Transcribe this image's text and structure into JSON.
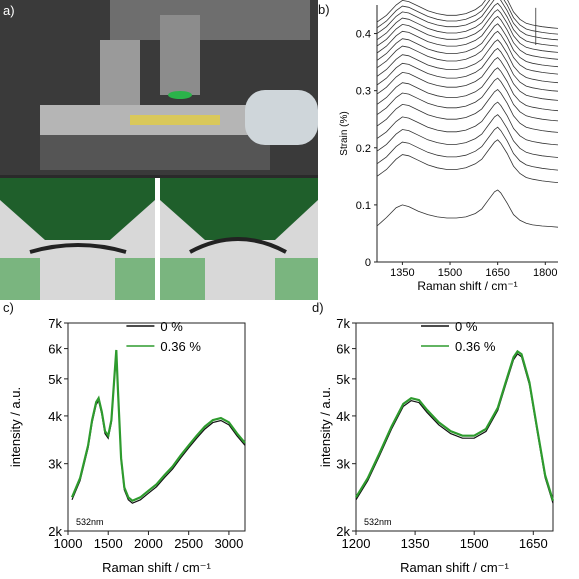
{
  "panels": {
    "a": {
      "letter": "a)"
    },
    "b": {
      "letter": "b)"
    },
    "c": {
      "letter": "c)"
    },
    "d": {
      "letter": "d)"
    }
  },
  "colors": {
    "series_0": "#111111",
    "series_036": "#2e9b2e",
    "photo_green": "#2bb34a",
    "photo_dark": "#1a1a1a"
  },
  "chart_data": [
    {
      "id": "b",
      "type": "line",
      "title": "",
      "xlabel": "Raman shift / cm⁻¹",
      "ylabel": "Strain (%)",
      "xlim": [
        1270,
        1840
      ],
      "ylim": [
        0,
        0.45
      ],
      "x_ticks": [
        "1350",
        "1500",
        "1650",
        "1800"
      ],
      "y_ticks": [
        "0",
        "0.1",
        "0.2",
        "0.3",
        "0.4"
      ],
      "grid": false,
      "x": [
        1270,
        1300,
        1330,
        1350,
        1370,
        1400,
        1430,
        1460,
        1490,
        1520,
        1550,
        1580,
        1600,
        1620,
        1640,
        1650,
        1660,
        1680,
        1700,
        1720,
        1740,
        1760,
        1790,
        1820,
        1840
      ],
      "series": [
        {
          "offset": 0.083,
          "values": [
            -0.02,
            -0.005,
            0.012,
            0.017,
            0.014,
            0.006,
            0.0,
            -0.004,
            -0.006,
            -0.006,
            -0.004,
            0.002,
            0.01,
            0.025,
            0.04,
            0.043,
            0.038,
            0.02,
            0.0,
            -0.01,
            -0.015,
            -0.018,
            -0.02,
            -0.021,
            -0.022
          ]
        },
        {
          "offset": 0.15,
          "values": [
            0.0,
            0.012,
            0.03,
            0.038,
            0.036,
            0.028,
            0.02,
            0.015,
            0.012,
            0.012,
            0.015,
            0.022,
            0.03,
            0.045,
            0.06,
            0.064,
            0.058,
            0.04,
            0.018,
            0.005,
            -0.002,
            -0.005,
            -0.008,
            -0.01,
            -0.011
          ]
        },
        {
          "offset": 0.172,
          "values": [
            0.0,
            0.012,
            0.03,
            0.038,
            0.036,
            0.028,
            0.02,
            0.015,
            0.012,
            0.012,
            0.015,
            0.022,
            0.03,
            0.045,
            0.06,
            0.064,
            0.058,
            0.04,
            0.018,
            0.005,
            -0.002,
            -0.005,
            -0.008,
            -0.01,
            -0.011
          ]
        },
        {
          "offset": 0.194,
          "values": [
            0.0,
            0.012,
            0.03,
            0.038,
            0.036,
            0.028,
            0.02,
            0.015,
            0.012,
            0.012,
            0.015,
            0.022,
            0.03,
            0.045,
            0.06,
            0.064,
            0.058,
            0.04,
            0.018,
            0.005,
            -0.002,
            -0.005,
            -0.008,
            -0.01,
            -0.011
          ]
        },
        {
          "offset": 0.216,
          "values": [
            0.0,
            0.012,
            0.03,
            0.038,
            0.036,
            0.028,
            0.02,
            0.015,
            0.012,
            0.012,
            0.015,
            0.022,
            0.03,
            0.045,
            0.06,
            0.064,
            0.058,
            0.04,
            0.018,
            0.005,
            -0.002,
            -0.005,
            -0.008,
            -0.01,
            -0.011
          ]
        },
        {
          "offset": 0.238,
          "values": [
            0.0,
            0.012,
            0.03,
            0.038,
            0.036,
            0.028,
            0.02,
            0.015,
            0.012,
            0.012,
            0.015,
            0.022,
            0.03,
            0.045,
            0.06,
            0.064,
            0.058,
            0.04,
            0.018,
            0.005,
            -0.002,
            -0.005,
            -0.008,
            -0.01,
            -0.011
          ]
        },
        {
          "offset": 0.258,
          "values": [
            0.0,
            0.012,
            0.03,
            0.038,
            0.036,
            0.028,
            0.02,
            0.015,
            0.012,
            0.012,
            0.015,
            0.022,
            0.03,
            0.045,
            0.06,
            0.064,
            0.058,
            0.04,
            0.018,
            0.005,
            -0.002,
            -0.005,
            -0.008,
            -0.01,
            -0.011
          ]
        },
        {
          "offset": 0.276,
          "values": [
            0.0,
            0.012,
            0.03,
            0.038,
            0.036,
            0.028,
            0.02,
            0.015,
            0.012,
            0.012,
            0.015,
            0.022,
            0.03,
            0.045,
            0.06,
            0.064,
            0.058,
            0.04,
            0.018,
            0.005,
            -0.002,
            -0.005,
            -0.008,
            -0.01,
            -0.011
          ]
        },
        {
          "offset": 0.294,
          "values": [
            0.0,
            0.012,
            0.03,
            0.038,
            0.036,
            0.028,
            0.02,
            0.015,
            0.012,
            0.012,
            0.015,
            0.022,
            0.03,
            0.045,
            0.06,
            0.064,
            0.058,
            0.04,
            0.018,
            0.005,
            -0.002,
            -0.005,
            -0.008,
            -0.01,
            -0.011
          ]
        },
        {
          "offset": 0.31,
          "values": [
            0.0,
            0.012,
            0.03,
            0.038,
            0.036,
            0.028,
            0.02,
            0.015,
            0.012,
            0.012,
            0.015,
            0.022,
            0.03,
            0.045,
            0.06,
            0.064,
            0.058,
            0.04,
            0.018,
            0.005,
            -0.002,
            -0.005,
            -0.008,
            -0.01,
            -0.011
          ]
        },
        {
          "offset": 0.325,
          "values": [
            0.0,
            0.012,
            0.03,
            0.038,
            0.036,
            0.028,
            0.02,
            0.015,
            0.012,
            0.012,
            0.015,
            0.022,
            0.03,
            0.045,
            0.06,
            0.064,
            0.058,
            0.04,
            0.018,
            0.005,
            -0.002,
            -0.005,
            -0.008,
            -0.01,
            -0.011
          ]
        },
        {
          "offset": 0.34,
          "values": [
            0.0,
            0.012,
            0.03,
            0.038,
            0.036,
            0.028,
            0.02,
            0.015,
            0.012,
            0.012,
            0.015,
            0.022,
            0.03,
            0.045,
            0.06,
            0.064,
            0.058,
            0.04,
            0.018,
            0.005,
            -0.002,
            -0.005,
            -0.008,
            -0.01,
            -0.011
          ]
        },
        {
          "offset": 0.353,
          "values": [
            0.0,
            0.012,
            0.03,
            0.038,
            0.036,
            0.028,
            0.02,
            0.015,
            0.012,
            0.012,
            0.015,
            0.022,
            0.03,
            0.045,
            0.06,
            0.064,
            0.058,
            0.04,
            0.018,
            0.005,
            -0.002,
            -0.005,
            -0.008,
            -0.01,
            -0.011
          ]
        },
        {
          "offset": 0.366,
          "values": [
            0.0,
            0.012,
            0.03,
            0.038,
            0.036,
            0.028,
            0.02,
            0.015,
            0.012,
            0.012,
            0.015,
            0.022,
            0.03,
            0.045,
            0.06,
            0.064,
            0.058,
            0.04,
            0.018,
            0.005,
            -0.002,
            -0.005,
            -0.008,
            -0.01,
            -0.011
          ]
        },
        {
          "offset": 0.378,
          "values": [
            0.0,
            0.012,
            0.03,
            0.038,
            0.036,
            0.028,
            0.02,
            0.015,
            0.012,
            0.012,
            0.015,
            0.022,
            0.03,
            0.045,
            0.06,
            0.064,
            0.058,
            0.04,
            0.018,
            0.005,
            -0.002,
            -0.005,
            -0.008,
            -0.01,
            -0.011
          ]
        },
        {
          "offset": 0.389,
          "values": [
            0.0,
            0.012,
            0.03,
            0.038,
            0.036,
            0.028,
            0.02,
            0.015,
            0.012,
            0.012,
            0.015,
            0.022,
            0.03,
            0.045,
            0.06,
            0.064,
            0.058,
            0.04,
            0.018,
            0.005,
            -0.002,
            -0.005,
            -0.008,
            -0.01,
            -0.011
          ]
        },
        {
          "offset": 0.4,
          "values": [
            0.0,
            0.012,
            0.03,
            0.038,
            0.036,
            0.028,
            0.02,
            0.015,
            0.012,
            0.012,
            0.015,
            0.022,
            0.03,
            0.045,
            0.06,
            0.064,
            0.058,
            0.04,
            0.018,
            0.005,
            -0.002,
            -0.005,
            -0.008,
            -0.01,
            -0.011
          ]
        },
        {
          "offset": 0.41,
          "values": [
            0.0,
            0.012,
            0.03,
            0.038,
            0.036,
            0.028,
            0.02,
            0.015,
            0.012,
            0.012,
            0.015,
            0.022,
            0.03,
            0.045,
            0.06,
            0.064,
            0.058,
            0.04,
            0.018,
            0.005,
            -0.002,
            -0.005,
            -0.008,
            -0.01,
            -0.011
          ]
        },
        {
          "offset": 0.42,
          "values": [
            0.0,
            0.012,
            0.03,
            0.038,
            0.036,
            0.028,
            0.02,
            0.015,
            0.012,
            0.012,
            0.015,
            0.022,
            0.03,
            0.045,
            0.06,
            0.064,
            0.058,
            0.04,
            0.018,
            0.005,
            -0.002,
            -0.005,
            -0.008,
            -0.01,
            -0.011
          ]
        }
      ]
    },
    {
      "id": "c",
      "type": "line",
      "title": "",
      "xlabel": "Raman shift / cm⁻¹",
      "ylabel": "intensity / a.u.",
      "annotation": "532nm",
      "yscale": "log",
      "xlim": [
        1000,
        3200
      ],
      "ylim": [
        2000,
        7000
      ],
      "x_ticks": [
        1000,
        1500,
        2000,
        2500,
        3000
      ],
      "y_ticks": [
        {
          "value": 2000,
          "label": "2k"
        },
        {
          "value": 3000,
          "label": "3k"
        },
        {
          "value": 4000,
          "label": "4k"
        },
        {
          "value": 5000,
          "label": "5k"
        },
        {
          "value": 6000,
          "label": "6k"
        },
        {
          "value": 7000,
          "label": "7k"
        }
      ],
      "legend": {
        "position": "top-center",
        "entries": [
          "0 %",
          "0.36 %"
        ]
      },
      "x": [
        1050,
        1150,
        1250,
        1300,
        1350,
        1380,
        1420,
        1460,
        1500,
        1540,
        1580,
        1600,
        1620,
        1660,
        1700,
        1750,
        1800,
        1900,
        2000,
        2100,
        2200,
        2300,
        2400,
        2500,
        2600,
        2700,
        2800,
        2900,
        3000,
        3100,
        3200
      ],
      "series": [
        {
          "name": "0 %",
          "values": [
            2450,
            2750,
            3350,
            3900,
            4350,
            4450,
            4100,
            3650,
            3550,
            3900,
            5200,
            5950,
            4700,
            3100,
            2600,
            2450,
            2400,
            2450,
            2550,
            2650,
            2800,
            2950,
            3150,
            3350,
            3550,
            3750,
            3900,
            3950,
            3850,
            3600,
            3400
          ]
        },
        {
          "name": "0.36 %",
          "values": [
            2450,
            2750,
            3350,
            3900,
            4350,
            4450,
            4100,
            3650,
            3550,
            3900,
            5200,
            5950,
            4700,
            3100,
            2600,
            2450,
            2400,
            2450,
            2550,
            2650,
            2800,
            2950,
            3150,
            3350,
            3550,
            3750,
            3900,
            3950,
            3850,
            3600,
            3400
          ]
        }
      ]
    },
    {
      "id": "d",
      "type": "line",
      "title": "",
      "xlabel": "Raman shift / cm⁻¹",
      "ylabel": "intensity / a.u.",
      "annotation": "532nm",
      "yscale": "log",
      "xlim": [
        1200,
        1700
      ],
      "ylim": [
        2000,
        7000
      ],
      "x_ticks": [
        1200,
        1350,
        1500,
        1650
      ],
      "y_ticks": [
        {
          "value": 2000,
          "label": "2k"
        },
        {
          "value": 3000,
          "label": "3k"
        },
        {
          "value": 4000,
          "label": "4k"
        },
        {
          "value": 5000,
          "label": "5k"
        },
        {
          "value": 6000,
          "label": "6k"
        },
        {
          "value": 7000,
          "label": "7k"
        }
      ],
      "legend": {
        "position": "top-center",
        "entries": [
          "0 %",
          "0.36 %"
        ]
      },
      "x": [
        1200,
        1230,
        1260,
        1290,
        1320,
        1340,
        1360,
        1380,
        1410,
        1440,
        1470,
        1500,
        1530,
        1560,
        1580,
        1600,
        1610,
        1620,
        1640,
        1660,
        1680,
        1700
      ],
      "series": [
        {
          "name": "0 %",
          "values": [
            2450,
            2750,
            3200,
            3750,
            4300,
            4450,
            4400,
            4150,
            3850,
            3650,
            3550,
            3550,
            3700,
            4200,
            4900,
            5700,
            5900,
            5800,
            4900,
            3700,
            2800,
            2400
          ]
        },
        {
          "name": "0.36 %",
          "values": [
            2450,
            2750,
            3200,
            3750,
            4300,
            4450,
            4400,
            4150,
            3850,
            3650,
            3550,
            3550,
            3700,
            4200,
            4900,
            5700,
            5900,
            5800,
            4900,
            3700,
            2800,
            2400
          ]
        }
      ]
    }
  ]
}
